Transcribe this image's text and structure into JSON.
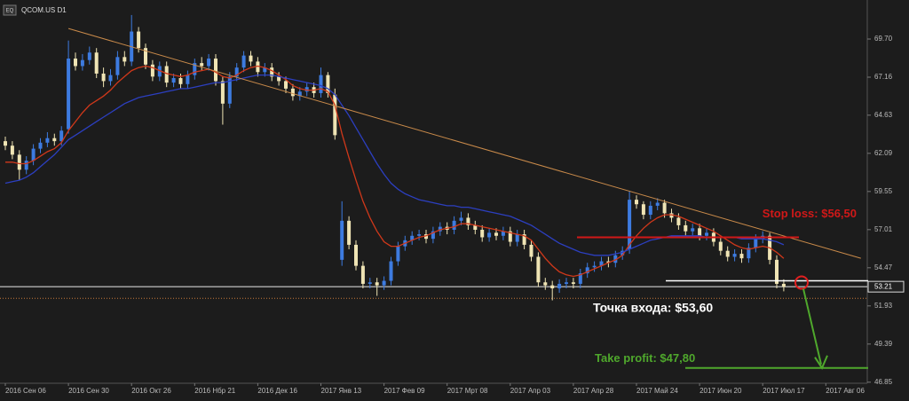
{
  "chart_data": {
    "type": "candlestick",
    "title": "QCOM.US D1",
    "badge": "EQ",
    "categories": [
      "2016 Сен 06",
      null,
      null,
      null,
      null,
      null,
      null,
      null,
      null,
      "2016 Сен 30",
      null,
      null,
      null,
      null,
      null,
      null,
      null,
      null,
      "2016 Окт 26",
      null,
      null,
      null,
      null,
      null,
      null,
      null,
      null,
      "2016 Нбр 21",
      null,
      null,
      null,
      null,
      null,
      null,
      null,
      null,
      "2016 Дек 16",
      null,
      null,
      null,
      null,
      null,
      null,
      null,
      null,
      "2017 Янв 13",
      null,
      null,
      null,
      null,
      null,
      null,
      null,
      null,
      "2017 Фев 09",
      null,
      null,
      null,
      null,
      null,
      null,
      null,
      null,
      "2017 Мрт 08",
      null,
      null,
      null,
      null,
      null,
      null,
      null,
      null,
      "2017 Апр 03",
      null,
      null,
      null,
      null,
      null,
      null,
      null,
      null,
      "2017 Апр 28",
      null,
      null,
      null,
      null,
      null,
      null,
      null,
      null,
      "2017 Май 24",
      null,
      null,
      null,
      null,
      null,
      null,
      null,
      null,
      "2017 Июн 20",
      null,
      null,
      null,
      null,
      null,
      null,
      null,
      null,
      "2017 Июл 17",
      null,
      null,
      null,
      null,
      null,
      null,
      null,
      null,
      "2017 Авг 06",
      null,
      null,
      null,
      null,
      null
    ],
    "open": [
      62.9,
      62.6,
      62.0,
      61.0,
      61.6,
      62.4,
      62.8,
      63.1,
      62.9,
      63.7,
      68.4,
      67.9,
      68.3,
      68.8,
      67.4,
      66.9,
      67.3,
      68.5,
      68.2,
      70.2,
      69.1,
      68.0,
      67.2,
      67.9,
      66.8,
      67.1,
      66.7,
      67.3,
      68.1,
      67.9,
      68.4,
      66.9,
      65.4,
      67.2,
      67.8,
      68.6,
      68.2,
      67.5,
      67.8,
      67.2,
      66.9,
      66.4,
      65.9,
      66.2,
      66.5,
      66.1,
      67.3,
      66.0,
      55.0,
      57.6,
      56.0,
      54.6,
      53.4,
      53.5,
      53.3,
      53.6,
      54.9,
      55.9,
      56.3,
      56.6,
      56.7,
      56.4,
      56.9,
      57.2,
      57.0,
      57.6,
      57.8,
      57.3,
      57.0,
      56.5,
      56.8,
      56.6,
      56.9,
      56.2,
      56.7,
      56.0,
      55.2,
      53.5,
      53.3,
      53.1,
      53.4,
      53.5,
      53.4,
      54.1,
      54.5,
      54.6,
      54.9,
      54.8,
      55.3,
      55.7,
      59.0,
      58.7,
      58.0,
      58.6,
      58.8,
      58.1,
      57.8,
      57.3,
      56.9,
      57.1,
      56.6,
      56.8,
      56.2,
      55.6,
      55.2,
      55.4,
      55.1,
      55.8,
      56.4,
      56.6,
      55.0,
      53.4,
      null,
      null,
      null,
      null,
      null,
      null,
      null,
      null,
      null,
      null,
      null
    ],
    "high": [
      63.2,
      62.9,
      62.3,
      61.9,
      62.7,
      63.1,
      63.5,
      63.4,
      63.9,
      69.6,
      68.8,
      68.7,
      69.2,
      69.1,
      67.8,
      67.7,
      68.9,
      68.9,
      71.3,
      70.5,
      69.4,
      68.3,
      68.2,
      68.2,
      67.4,
      67.4,
      67.6,
      68.4,
      68.5,
      68.7,
      68.7,
      67.2,
      67.5,
      68.1,
      68.9,
      68.9,
      68.5,
      68.1,
      68.1,
      67.5,
      67.2,
      66.7,
      66.5,
      66.8,
      66.8,
      67.8,
      67.5,
      66.4,
      58.9,
      57.9,
      56.3,
      54.9,
      53.8,
      53.8,
      53.9,
      55.2,
      56.2,
      56.6,
      56.9,
      57.0,
      57.0,
      57.2,
      57.5,
      57.5,
      57.9,
      58.2,
      58.1,
      57.6,
      57.3,
      57.1,
      57.1,
      57.2,
      57.2,
      57.0,
      57.0,
      56.3,
      55.5,
      53.8,
      53.6,
      53.7,
      53.8,
      53.8,
      54.4,
      54.8,
      54.9,
      55.2,
      55.2,
      55.6,
      55.9,
      59.6,
      59.3,
      58.9,
      58.9,
      59.1,
      59.0,
      58.4,
      58.1,
      57.6,
      57.4,
      57.4,
      57.1,
      57.1,
      56.5,
      55.9,
      55.7,
      55.7,
      56.1,
      56.7,
      56.9,
      56.8,
      55.3,
      53.7,
      null,
      null,
      null,
      null,
      null,
      null,
      null,
      null,
      null,
      null,
      null
    ],
    "low": [
      62.3,
      61.7,
      60.3,
      60.7,
      61.3,
      62.1,
      62.5,
      62.6,
      62.6,
      63.4,
      67.6,
      67.6,
      68.0,
      67.1,
      66.5,
      66.6,
      67.0,
      67.9,
      67.9,
      68.8,
      67.7,
      66.9,
      66.9,
      66.5,
      66.5,
      66.4,
      66.4,
      67.0,
      67.6,
      67.6,
      66.6,
      64.0,
      65.1,
      66.9,
      67.5,
      67.9,
      67.2,
      67.2,
      66.9,
      66.6,
      66.1,
      65.6,
      65.6,
      65.9,
      65.8,
      65.8,
      65.8,
      63.0,
      54.6,
      55.7,
      54.3,
      53.1,
      53.1,
      52.6,
      53.0,
      53.3,
      54.6,
      55.6,
      56.0,
      56.3,
      56.1,
      56.1,
      56.6,
      56.7,
      56.7,
      57.3,
      57.0,
      56.7,
      56.2,
      56.2,
      56.3,
      56.3,
      55.9,
      55.9,
      55.7,
      54.9,
      53.2,
      53.0,
      52.3,
      52.8,
      53.1,
      53.1,
      53.1,
      53.8,
      54.2,
      54.3,
      54.5,
      54.5,
      55.0,
      55.4,
      58.4,
      57.7,
      57.7,
      58.3,
      57.8,
      57.5,
      57.0,
      56.6,
      56.6,
      56.3,
      56.3,
      55.9,
      55.3,
      54.9,
      54.9,
      54.8,
      54.8,
      55.5,
      56.1,
      54.7,
      53.1,
      52.9,
      null,
      null,
      null,
      null,
      null,
      null,
      null,
      null,
      null,
      null,
      null
    ],
    "close": [
      62.6,
      62.0,
      61.0,
      61.6,
      62.4,
      62.8,
      63.1,
      62.9,
      63.6,
      68.4,
      67.9,
      68.3,
      68.8,
      67.4,
      66.9,
      67.3,
      68.5,
      68.2,
      70.2,
      69.1,
      68.0,
      67.2,
      67.9,
      66.8,
      67.1,
      66.7,
      67.3,
      68.1,
      67.9,
      68.4,
      66.9,
      65.4,
      67.2,
      67.8,
      68.6,
      68.2,
      67.5,
      67.8,
      67.2,
      66.9,
      66.4,
      65.9,
      66.2,
      66.5,
      66.1,
      67.3,
      66.1,
      63.3,
      57.6,
      56.0,
      54.6,
      53.4,
      53.5,
      53.3,
      53.6,
      54.9,
      55.9,
      56.3,
      56.6,
      56.7,
      56.4,
      56.9,
      57.2,
      57.0,
      57.6,
      57.8,
      57.3,
      57.0,
      56.5,
      56.8,
      56.6,
      56.9,
      56.2,
      56.7,
      56.0,
      55.2,
      53.5,
      53.3,
      53.1,
      53.4,
      53.5,
      53.4,
      54.1,
      54.5,
      54.6,
      54.9,
      54.8,
      55.3,
      55.6,
      59.0,
      58.7,
      58.0,
      58.6,
      58.8,
      58.1,
      57.8,
      57.3,
      56.9,
      57.1,
      56.6,
      56.8,
      56.2,
      55.6,
      55.2,
      55.4,
      55.1,
      55.8,
      56.4,
      56.6,
      55.0,
      53.4,
      53.2,
      null,
      null,
      null,
      null,
      null,
      null,
      null,
      null,
      null,
      null,
      null
    ],
    "up_color": "#3d7be0",
    "down_color": "#efe4b4",
    "lines": [
      {
        "color": "#d0381a",
        "values": [
          61.5,
          61.5,
          61.4,
          61.4,
          61.6,
          61.9,
          62.2,
          62.4,
          62.8,
          63.6,
          64.2,
          64.8,
          65.3,
          65.6,
          65.9,
          66.3,
          66.8,
          67.2,
          67.6,
          67.8,
          67.9,
          67.8,
          67.6,
          67.4,
          67.3,
          67.2,
          67.3,
          67.5,
          67.6,
          67.7,
          67.5,
          67.2,
          67.1,
          67.3,
          67.6,
          67.8,
          67.9,
          67.8,
          67.6,
          67.3,
          67.0,
          66.6,
          66.4,
          66.3,
          66.3,
          66.4,
          66.2,
          65.3,
          63.4,
          61.8,
          60.3,
          58.9,
          57.8,
          56.9,
          56.2,
          55.9,
          55.9,
          56.1,
          56.3,
          56.5,
          56.6,
          56.8,
          57.0,
          57.1,
          57.2,
          57.4,
          57.4,
          57.3,
          57.2,
          57.1,
          57.0,
          56.9,
          56.8,
          56.7,
          56.6,
          56.3,
          55.7,
          55.1,
          54.6,
          54.2,
          54.0,
          53.9,
          54.0,
          54.2,
          54.4,
          54.6,
          54.8,
          55.0,
          55.3,
          56.0,
          56.6,
          57.1,
          57.5,
          57.8,
          58.0,
          58.0,
          57.9,
          57.7,
          57.5,
          57.3,
          57.1,
          56.9,
          56.6,
          56.3,
          56.0,
          55.8,
          55.7,
          55.8,
          55.9,
          55.8,
          55.5,
          55.1,
          null,
          null,
          null,
          null,
          null,
          null,
          null,
          null,
          null,
          null,
          null
        ]
      },
      {
        "color": "#2c3fc0",
        "values": [
          60.1,
          60.2,
          60.3,
          60.5,
          60.8,
          61.2,
          61.6,
          62.0,
          62.5,
          63.0,
          63.3,
          63.6,
          63.9,
          64.2,
          64.5,
          64.8,
          65.1,
          65.4,
          65.6,
          65.8,
          65.9,
          66.0,
          66.1,
          66.2,
          66.3,
          66.4,
          66.4,
          66.5,
          66.6,
          66.7,
          66.8,
          66.8,
          66.9,
          67.0,
          67.1,
          67.2,
          67.3,
          67.3,
          67.3,
          67.2,
          67.1,
          67.0,
          66.9,
          66.8,
          66.7,
          66.6,
          66.4,
          66.0,
          65.3,
          64.6,
          63.8,
          63.0,
          62.2,
          61.4,
          60.7,
          60.1,
          59.7,
          59.4,
          59.2,
          59.0,
          58.9,
          58.8,
          58.7,
          58.6,
          58.6,
          58.5,
          58.5,
          58.4,
          58.3,
          58.2,
          58.1,
          58.0,
          57.9,
          57.7,
          57.5,
          57.3,
          57.0,
          56.7,
          56.4,
          56.1,
          55.9,
          55.7,
          55.5,
          55.4,
          55.3,
          55.3,
          55.3,
          55.4,
          55.5,
          55.7,
          55.9,
          56.1,
          56.3,
          56.4,
          56.5,
          56.6,
          56.6,
          56.6,
          56.6,
          56.6,
          56.5,
          56.5,
          56.5,
          56.5,
          56.5,
          56.4,
          56.4,
          56.4,
          56.4,
          56.3,
          56.2,
          56.0,
          null,
          null,
          null,
          null,
          null,
          null,
          null,
          null,
          null,
          null,
          null
        ]
      }
    ],
    "trendline": {
      "values": [
        70.4,
        55.1
      ],
      "color": "#c98a4a"
    },
    "levels": [
      {
        "value": 56.5,
        "label": "Stop loss: $56,50",
        "color": "#d01818"
      },
      {
        "value": 53.6,
        "label": "Точка входа: $53,60",
        "color": "#ffffff"
      },
      {
        "value": 47.8,
        "label": "Take profit: $47,80",
        "color": "#4fa82c"
      }
    ],
    "price": {
      "value": 53.21
    },
    "dotted_level": {
      "value": 52.44,
      "color": "#c8783a"
    },
    "ylim": [
      46.78,
      72.3
    ],
    "yticks": [
      {
        "value": 69.7,
        "label": "69.70"
      },
      67.16,
      64.63,
      62.09,
      59.55,
      57.01,
      54.47,
      51.93,
      49.39,
      46.85
    ]
  }
}
